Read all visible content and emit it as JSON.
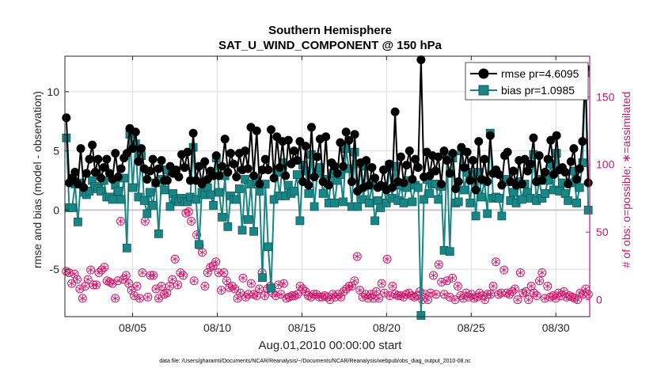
{
  "chart_data": {
    "type": "line",
    "title": "Southern Hemisphere",
    "subtitle": "SAT_U_WIND_COMPONENT @ 150 hPa",
    "xlabel": "Aug.01,2010 00:00:00 start",
    "ylabel": "rmse and bias (model - observation)",
    "y2label": "# of obs: o=possible; ∗=assimilated",
    "footnote": "data file: /Users/gharamti/Documents/NCAR/Reanalysis/~/Documents/NCAR/Reanalysis/webpub/obs_diag_output_2010-08.nc",
    "xlim": [
      1,
      32
    ],
    "ylim": [
      -9,
      13
    ],
    "y2lim": [
      -12.5,
      180
    ],
    "xticks": [
      5,
      10,
      15,
      20,
      25,
      30
    ],
    "xticklabels": [
      "08/05",
      "08/10",
      "08/15",
      "08/20",
      "08/25",
      "08/30"
    ],
    "yticks": [
      -5,
      0,
      5,
      10
    ],
    "yticklabels": [
      "-5",
      "0",
      "5",
      "10"
    ],
    "y2ticks": [
      0,
      50,
      100,
      150
    ],
    "y2ticklabels": [
      "0",
      "50",
      "100",
      "150"
    ],
    "grid": true,
    "zero_line": 0,
    "legend_position": "top-right",
    "colors": {
      "rmse": "#000000",
      "bias": "#1a8585",
      "obs": "#c8186b",
      "zero": "#c8c8c8",
      "grid": "#dcdcdc"
    },
    "series": [
      {
        "name": "rmse",
        "legend": "rmse pr=4.6095",
        "axis": "left",
        "values": [
          7.8,
          2.3,
          2.7,
          3.2,
          2.2,
          5.2,
          1.9,
          3.1,
          4.3,
          5.5,
          3.2,
          4.3,
          2.7,
          3.6,
          4.3,
          3.1,
          2.6,
          4.8,
          2.8,
          3.5,
          4.4,
          4.8,
          6.9,
          5.2,
          6.6,
          4.1,
          5.2,
          3.5,
          2.6,
          3.3,
          4.3,
          2.3,
          3.5,
          4.2,
          2.5,
          2.5,
          3.7,
          3.1,
          3.4,
          2.8,
          4.7,
          3.6,
          4.9,
          2.5,
          6.5,
          2.5,
          3.7,
          2.2,
          4.1,
          2.6,
          3.3,
          2.9,
          4.6,
          2.9,
          3.7,
          6.0,
          3.2,
          4.8,
          3.9,
          2.8,
          4.8,
          3.4,
          5.0,
          3.5,
          7.0,
          2.9,
          6.7,
          2.2,
          3.4,
          4.3,
          3.4,
          6.8,
          2.7,
          6.2,
          3.6,
          5.8,
          2.9,
          5.9,
          3.9,
          5.0,
          4.2,
          5.8,
          2.4,
          5.4,
          2.1,
          7.0,
          2.8,
          4.5,
          6.0,
          2.4,
          6.2,
          2.1,
          4.0,
          3.7,
          3.1,
          5.7,
          3.7,
          6.6,
          5.9,
          2.4,
          6.4,
          1.6,
          4.0,
          1.9,
          4.2,
          2.1,
          3.6,
          2.7,
          1.9,
          2.1,
          3.4,
          1.7,
          3.9,
          1.9,
          8.3,
          2.4,
          4.5,
          2.3,
          3.8,
          5.0,
          2.6,
          4.3,
          3.6,
          12.7,
          2.8,
          4.9,
          2.9,
          4.6,
          3.3,
          4.5,
          2.2,
          5.0,
          4.2,
          3.1,
          4.8,
          1.8,
          2.4,
          5.3,
          3.6,
          4.9,
          2.5,
          4.2,
          1.7,
          5.8,
          2.6,
          4.3,
          2.4,
          6.3,
          3.1,
          3.4,
          3.0,
          2.1,
          4.6,
          4.9,
          2.4,
          3.3,
          2.1,
          4.2,
          2.2,
          4.3,
          3.3,
          3.9,
          6.1,
          2.4,
          4.6,
          2.5,
          3.2,
          4.3,
          5.9,
          3.0,
          6.3,
          3.4,
          3.6,
          3.2,
          2.2,
          4.1,
          5.2,
          2.6,
          3.5,
          5.8,
          12.0,
          2.3
        ]
      },
      {
        "name": "bias",
        "legend": "bias pr=1.0985",
        "axis": "left",
        "values": [
          6.1,
          0.2,
          0.2,
          2.2,
          -1.0,
          2.3,
          1.5,
          1.3,
          1.6,
          2.5,
          2.0,
          1.8,
          1.6,
          2.5,
          1.1,
          1.1,
          0.9,
          2.1,
          1.6,
          0.9,
          2.7,
          -3.2,
          6.4,
          1.9,
          5.6,
          1.1,
          4.6,
          0.8,
          -0.3,
          1.5,
          0.4,
          2.3,
          -2.0,
          2.6,
          1.7,
          3.4,
          0.3,
          1.4,
          0.9,
          0.7,
          1.0,
          0.7,
          0.7,
          1.1,
          5.3,
          0.9,
          -2.9,
          1.5,
          1.3,
          1.9,
          1.3,
          0.4,
          4.4,
          1.5,
          -0.6,
          2.9,
          -1.4,
          1.2,
          0.9,
          0.9,
          1.8,
          -1.7,
          2.6,
          -0.8,
          2.2,
          -1.8,
          2.4,
          1.6,
          -5.7,
          2.2,
          -3.1,
          -6.6,
          0.9,
          3.2,
          1.2,
          4.0,
          1.2,
          2.1,
          1.4,
          1.6,
          3.0,
          -0.9,
          3.8,
          3.3,
          1.4,
          4.7,
          0.3,
          3.1,
          3.6,
          1.4,
          2.6,
          0.6,
          3.1,
          0.6,
          2.5,
          3.0,
          0.7,
          5.2,
          3.5,
          0.3,
          4.9,
          0.3,
          3.9,
          0.9,
          3.7,
          0.6,
          2.1,
          -0.9,
          0.8,
          0.2,
          2.0,
          0.6,
          3.8,
          1.0,
          3.7,
          0.8,
          2.1,
          0.6,
          1.9,
          2.5,
          0.7,
          2.1,
          1.9,
          -8.9,
          0.9,
          2.6,
          1.4,
          2.2,
          2.2,
          0.9,
          2.0,
          -3.4,
          4.5,
          -3.5,
          4.4,
          0.6,
          0.7,
          5.0,
          1.7,
          3.2,
          0.6,
          3.0,
          -0.5,
          3.2,
          1.1,
          2.5,
          -0.3,
          6.5,
          1.0,
          1.1,
          1.0,
          -0.5,
          2.4,
          2.6,
          0.8,
          1.5,
          0.6,
          2.4,
          0.9,
          2.2,
          1.5,
          1.0,
          4.7,
          0.8,
          2.6,
          1.0,
          1.4,
          2.5,
          3.9,
          1.7,
          4.8,
          1.6,
          2.3,
          1.4,
          0.8,
          2.3,
          3.3,
          0.6,
          1.9,
          4.0,
          11.6,
          0.0
        ]
      },
      {
        "name": "obs",
        "axis": "right",
        "values": [
          21,
          20,
          12,
          19,
          15,
          8,
          1,
          10,
          15,
          22,
          11,
          11,
          20,
          22,
          24,
          14,
          13,
          12,
          1,
          14,
          58,
          15,
          18,
          12,
          7,
          3,
          10,
          1,
          20,
          58,
          2,
          18,
          18,
          8,
          1,
          10,
          4,
          5,
          10,
          15,
          30,
          11,
          20,
          18,
          64,
          65,
          58,
          14,
          48,
          40,
          35,
          10,
          20,
          24,
          25,
          28,
          20,
          7,
          20,
          14,
          9,
          10,
          8,
          1,
          5,
          16,
          2,
          4,
          12,
          4,
          3,
          8,
          20,
          3,
          8,
          10,
          5,
          3,
          11,
          4,
          12,
          1,
          2,
          3,
          3,
          4,
          10,
          8,
          6,
          3,
          2,
          4,
          4,
          2,
          2,
          3,
          2,
          0,
          4,
          2,
          4,
          2,
          6,
          8,
          10,
          10,
          14,
          32,
          7,
          2,
          4,
          1,
          4,
          1,
          6,
          1,
          12,
          5,
          30,
          3,
          10,
          4,
          3,
          3,
          2,
          4,
          5,
          3,
          2,
          3,
          6,
          0,
          4,
          0,
          5,
          18,
          4,
          26,
          13,
          4,
          14,
          2,
          16,
          0,
          10,
          3,
          1,
          5,
          2,
          4,
          1,
          2,
          5,
          3,
          0,
          4,
          4,
          10,
          28,
          4,
          5,
          22,
          5,
          4,
          6,
          8,
          0,
          20,
          5,
          6,
          0,
          10,
          5,
          3,
          14,
          20,
          1,
          10,
          2,
          3,
          1,
          5,
          3,
          6,
          2,
          3,
          2,
          1,
          0,
          5,
          4,
          8,
          4
        ]
      }
    ]
  }
}
